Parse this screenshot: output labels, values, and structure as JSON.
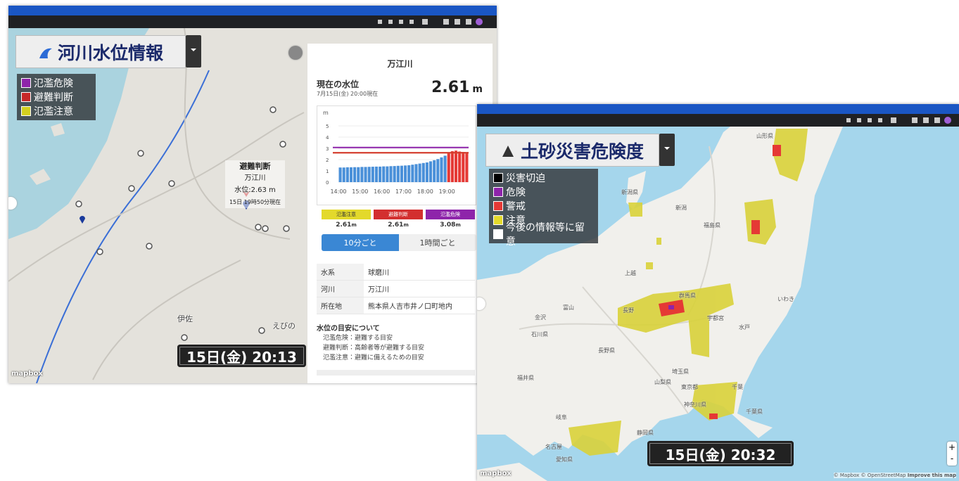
{
  "left_window": {
    "title": "河川水位情報",
    "legend": [
      {
        "label": "氾濫危険",
        "color": "#8e24aa"
      },
      {
        "label": "避難判断",
        "color": "#c62828"
      },
      {
        "label": "氾濫注意",
        "color": "#d4cf1f"
      }
    ],
    "popup": {
      "level": "避難判断",
      "river": "万江川",
      "water_level": "水位:2.63 m",
      "time": "15日 19時50分現在"
    },
    "map_labels": [
      "伊佐",
      "えびの"
    ],
    "timestamp": "15日(金) 20:13",
    "logo": "mapbox",
    "panel": {
      "river": "万江川",
      "current_label": "現在の水位",
      "current_time": "7月15日(金) 20:00現在",
      "current_value": "2.61",
      "unit": "m",
      "chart": {
        "type": "bar",
        "y_label": "m",
        "ylim": [
          0,
          5
        ],
        "yticks": [
          0,
          1,
          2,
          3,
          4,
          5
        ],
        "xticks": [
          "14:00",
          "15:00",
          "16:00",
          "17:00",
          "18:00",
          "19:00"
        ],
        "values": [
          1.3,
          1.3,
          1.32,
          1.32,
          1.33,
          1.33,
          1.35,
          1.35,
          1.36,
          1.37,
          1.38,
          1.38,
          1.4,
          1.4,
          1.42,
          1.43,
          1.45,
          1.46,
          1.48,
          1.5,
          1.55,
          1.6,
          1.65,
          1.7,
          1.75,
          1.85,
          1.95,
          2.05,
          2.2,
          2.35,
          2.63,
          2.75,
          2.8,
          2.72,
          2.68,
          2.63
        ],
        "color": "#4a90d9",
        "alert_color": "#e53935",
        "grid": true
      },
      "thresholds": [
        {
          "name": "氾濫注意",
          "value": 2.61,
          "color": "#e3d92b"
        },
        {
          "name": "避難判断",
          "value": 2.61,
          "color": "#d32f2f"
        },
        {
          "name": "氾濫危険",
          "value": 3.08,
          "color": "#8e24aa"
        }
      ],
      "tabs": [
        "10分ごと",
        "1時間ごと"
      ],
      "info": [
        [
          "水系",
          "球磨川"
        ],
        [
          "河川",
          "万江川"
        ],
        [
          "所在地",
          "熊本県人吉市井ノ口町地内"
        ]
      ],
      "guide_title": "水位の目安について",
      "guide": [
        "氾濫危険：避難する目安",
        "避難判断：高齢者等が避難する目安",
        "氾濫注意：避難に備えるための目安"
      ]
    }
  },
  "right_window": {
    "title": "土砂災害危険度",
    "legend": [
      {
        "label": "災害切迫",
        "color": "#000000"
      },
      {
        "label": "危険",
        "color": "#8e24aa"
      },
      {
        "label": "警戒",
        "color": "#e53935"
      },
      {
        "label": "注意",
        "color": "#e3d92b"
      },
      {
        "label": "今後の情報等に留意",
        "color": "#ffffff"
      }
    ],
    "map_labels": [
      "山形県",
      "新潟県",
      "新潟",
      "福島県",
      "上越",
      "いわき",
      "富山",
      "金沢",
      "長野",
      "群馬県",
      "宇都宮",
      "水戸",
      "石川県",
      "福井県",
      "岐阜",
      "長野県",
      "山梨県",
      "埼玉県",
      "東京都",
      "千葉",
      "千葉県",
      "神奈川県",
      "静岡県",
      "名古屋",
      "愛知県"
    ],
    "timestamp": "15日(金) 20:32",
    "attribution": "© Mapbox © OpenStreetMap",
    "improve": "Improve this map",
    "logo": "mapbox"
  }
}
